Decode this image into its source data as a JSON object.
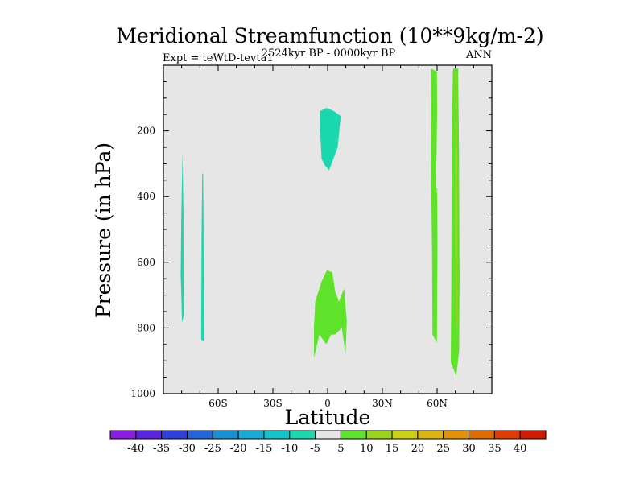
{
  "chart_data": {
    "type": "heatmap",
    "title": "Meridional Streamfunction (10**9kg/m-2)",
    "left_label": "Expt = teWtD-tevta1",
    "center_label": "2524kyr BP - 0000kyr BP",
    "right_label": "ANN",
    "xlabel": "Latitude",
    "ylabel": "Pressure (in hPa)",
    "xlim": [
      -90,
      90
    ],
    "ylim": [
      1000,
      0
    ],
    "x_ticks": [
      {
        "value": -60,
        "label": "60S"
      },
      {
        "value": -30,
        "label": "30S"
      },
      {
        "value": 0,
        "label": "0"
      },
      {
        "value": 30,
        "label": "30N"
      },
      {
        "value": 60,
        "label": "60N"
      }
    ],
    "y_ticks": [
      {
        "value": 200,
        "label": "200"
      },
      {
        "value": 400,
        "label": "400"
      },
      {
        "value": 600,
        "label": "600"
      },
      {
        "value": 800,
        "label": "800"
      },
      {
        "value": 1000,
        "label": "1000"
      }
    ],
    "background_color": "#e6e6e6",
    "regions": [
      {
        "name": "sh-high-lat-cell-west",
        "level": "-10 to -5",
        "color": "#1ad7b0",
        "points": [
          [
            -79.5,
            265
          ],
          [
            -79,
            460
          ],
          [
            -78.8,
            760
          ],
          [
            -79.8,
            783
          ],
          [
            -80.5,
            635
          ],
          [
            -80.2,
            460
          ]
        ]
      },
      {
        "name": "sh-high-lat-cell-east",
        "level": "-10 to -5",
        "color": "#1ad7b0",
        "points": [
          [
            -68.2,
            330
          ],
          [
            -68,
            520
          ],
          [
            -67.7,
            840
          ],
          [
            -69.3,
            835
          ],
          [
            -69.1,
            520
          ],
          [
            -68.7,
            330
          ]
        ]
      },
      {
        "name": "upper-equatorial-cell",
        "level": "-10 to -5",
        "color": "#1ad7b0",
        "points": [
          [
            -4.3,
            140
          ],
          [
            -0.5,
            130
          ],
          [
            3.5,
            140
          ],
          [
            7.2,
            155
          ],
          [
            5.5,
            250
          ],
          [
            0.8,
            320
          ],
          [
            -1.5,
            305
          ],
          [
            -3.3,
            285
          ],
          [
            -4.1,
            200
          ]
        ]
      },
      {
        "name": "lower-equatorial-cell",
        "level": "5 to 10",
        "color": "#5ee22a",
        "points": [
          [
            -7.5,
            800
          ],
          [
            -6.8,
            720
          ],
          [
            -3.4,
            660
          ],
          [
            -0.5,
            625
          ],
          [
            2.5,
            630
          ],
          [
            4.2,
            690
          ],
          [
            6.2,
            720
          ],
          [
            9,
            680
          ],
          [
            10.5,
            780
          ],
          [
            9.8,
            880
          ],
          [
            7.8,
            800
          ],
          [
            4.1,
            820
          ],
          [
            1.9,
            820
          ],
          [
            -0.7,
            850
          ],
          [
            -4.5,
            820
          ],
          [
            -7.5,
            890
          ]
        ]
      },
      {
        "name": "nh-cell-60n",
        "level": "5 to 10",
        "color": "#5ee22a",
        "points": [
          [
            56.7,
            10
          ],
          [
            59.9,
            20
          ],
          [
            60,
            150
          ],
          [
            59.5,
            330
          ],
          [
            59.4,
            450
          ],
          [
            59.7,
            375
          ],
          [
            60.1,
            375
          ],
          [
            60.2,
            550
          ],
          [
            59.9,
            845
          ],
          [
            57.5,
            820
          ],
          [
            57.2,
            560
          ],
          [
            56.5,
            250
          ]
        ]
      },
      {
        "name": "nh-cell-70n",
        "level": "5 to 10",
        "color": "#5ee22a",
        "points": [
          [
            68.7,
            10
          ],
          [
            71.5,
            10
          ],
          [
            72,
            250
          ],
          [
            72.3,
            650
          ],
          [
            72.1,
            870
          ],
          [
            70.5,
            945
          ],
          [
            67.5,
            905
          ],
          [
            67.8,
            660
          ],
          [
            68,
            250
          ]
        ]
      },
      {
        "name": "nh-cell-70n-core",
        "level": "10 to 15",
        "color": "#9ad31b",
        "points": [
          [
            70,
            20
          ],
          [
            70.7,
            20
          ],
          [
            71.1,
            400
          ],
          [
            71.2,
            780
          ],
          [
            70.8,
            820
          ],
          [
            70.2,
            780
          ],
          [
            69.9,
            400
          ]
        ]
      }
    ],
    "colorbar": {
      "labels": [
        "-40",
        "-35",
        "-30",
        "-25",
        "-20",
        "-15",
        "-10",
        "-5",
        "5",
        "10",
        "15",
        "20",
        "25",
        "30",
        "35",
        "40"
      ],
      "colors": [
        "#8c1ce4",
        "#5a24e0",
        "#2e3fdc",
        "#1f68dc",
        "#1690d4",
        "#13acd6",
        "#11c3cc",
        "#1ad7b0",
        "#e6e6e6",
        "#5ee22a",
        "#9ad31b",
        "#cdd015",
        "#ddb40e",
        "#e49106",
        "#e26b00",
        "#e13a00",
        "#d41b00"
      ]
    }
  }
}
